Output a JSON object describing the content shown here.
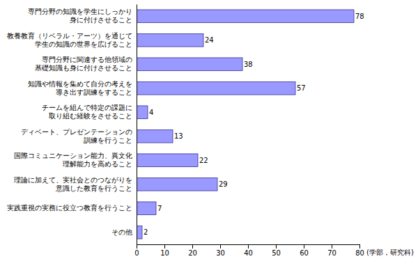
{
  "chart_data": {
    "type": "bar",
    "orientation": "horizontal",
    "categories": [
      "専門分野の知識を学生にしっかり\n身に付けさせること",
      "教養教育（リベラル・アーツ）を通じて\n学生の知識の世界を広げること",
      "専門分野に関連する他領域の\n基礎知識も身に付けさせること",
      "知識や情報を集めて自分の考えを\n導き出す訓練をすること",
      "チームを組んで特定の課題に\n取り組む経験をさせること",
      "ディベート、プレゼンテーションの\n訓練を行うこと",
      "国際コミュニケーション能力、異文化\n理解能力を高めること",
      "理論に加えて、実社会とのつながりを\n意識した教育を行うこと",
      "実践重視の実務に役立つ教育を行うこと",
      "その他"
    ],
    "values": [
      78,
      24,
      38,
      57,
      4,
      13,
      22,
      29,
      7,
      2
    ],
    "color": "#9999ff",
    "x_label": "(学部，研究科)",
    "xlim": [
      0,
      80
    ],
    "xticks": [
      0,
      10,
      20,
      30,
      40,
      50,
      60,
      70,
      80
    ],
    "grid": false,
    "data_labels": true
  }
}
